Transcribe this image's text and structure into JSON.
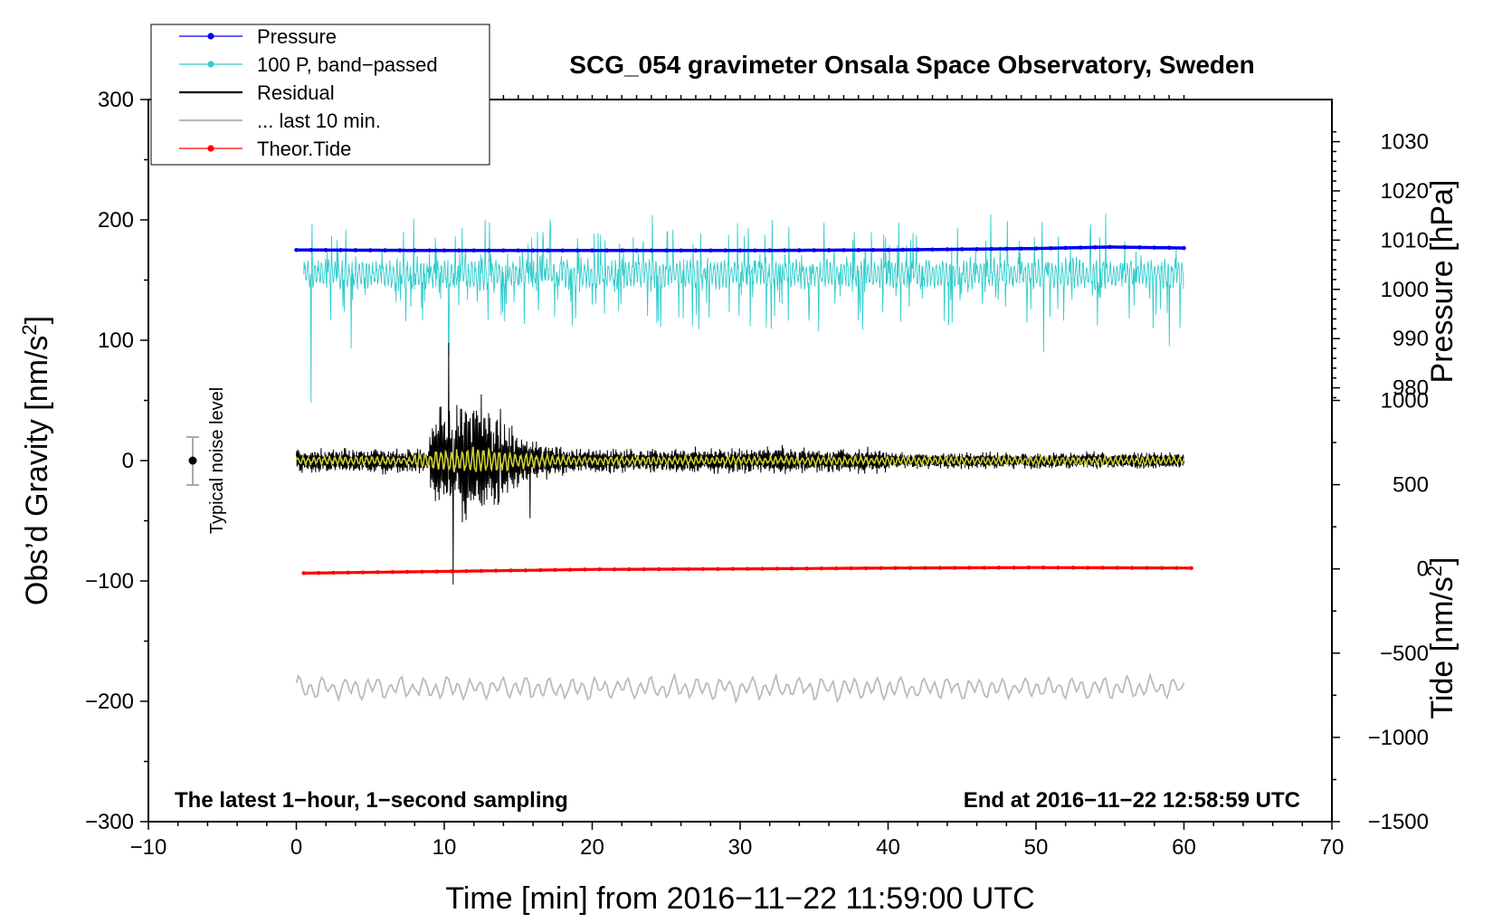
{
  "chart_data": {
    "type": "line",
    "title": "SCG_054 gravimeter Onsala Space Observatory, Sweden",
    "xlabel": "Time [min] from 2016−11−22 11:59:00 UTC",
    "ylabel": "Obs’d Gravity [nm/s²]",
    "ylabel_main": "Obs’d Gravity [nm/s",
    "ylabel_sup": "2",
    "ylabel_end": "]",
    "y2label": "Pressure [hPa]",
    "y3label_main": "Tide [nm/s",
    "y3label_sup": "2",
    "y3label_end": "]",
    "xlim": [
      -10,
      70
    ],
    "ylim": [
      -300,
      300
    ],
    "xticks": [
      -10,
      0,
      10,
      20,
      30,
      40,
      50,
      60,
      70
    ],
    "xtick_labels": [
      "−10",
      "0",
      "10",
      "20",
      "30",
      "40",
      "50",
      "60",
      "70"
    ],
    "yticks": [
      -300,
      -200,
      -100,
      0,
      100,
      200,
      300
    ],
    "ytick_labels": [
      "−300",
      "−200",
      "−100",
      "0",
      "100",
      "200",
      "300"
    ],
    "pressure_axis": {
      "ticks": [
        980,
        990,
        1000,
        1010,
        1020,
        1030
      ],
      "tick_labels": [
        "980",
        "990",
        "1000",
        "1010",
        "1020",
        "1030"
      ],
      "mapping": {
        "hPa": [
          1008,
          1030
        ],
        "gravity": [
          175,
          265
        ]
      }
    },
    "tide_axis": {
      "ticks": [
        -1500,
        -1000,
        -500,
        0,
        500,
        1000
      ],
      "tick_labels": [
        "−1500",
        "−1000",
        "−500",
        "0",
        "500",
        "1000"
      ],
      "mapping": {
        "tide": [
          -1500,
          1000
        ],
        "gravity": [
          -300,
          50
        ]
      }
    },
    "legend": [
      {
        "label": "Pressure",
        "color": "#0000ee",
        "style": "line-dot"
      },
      {
        "label": "100 P, band−passed",
        "color": "#33cccc",
        "style": "line-dot"
      },
      {
        "label": "Residual",
        "color": "#000000",
        "style": "line"
      },
      {
        "label": "... last 10 min.",
        "color": "#bbbbbb",
        "style": "line"
      },
      {
        "label": "Theor.Tide",
        "color": "#ff0000",
        "style": "line-dot"
      }
    ],
    "series": [
      {
        "name": "Pressure",
        "color": "#0000ee",
        "unit": "hPa",
        "x": [
          0,
          10,
          20,
          30,
          40,
          50,
          55,
          60
        ],
        "y": [
          1008.0,
          1007.9,
          1007.9,
          1007.9,
          1008.0,
          1008.3,
          1008.6,
          1008.4
        ]
      },
      {
        "name": "100 P, band−passed",
        "color": "#33cccc",
        "unit": "nm/s² (gravity axis)",
        "x_range": [
          0.5,
          60
        ],
        "baseline": 155,
        "peaks": [
          [
            1.0,
            200
          ],
          [
            1.0,
            48
          ],
          [
            3.7,
            93
          ],
          [
            10.3,
            87
          ],
          [
            50.5,
            90
          ],
          [
            54.7,
            205
          ],
          [
            59.0,
            95
          ]
        ]
      },
      {
        "name": "Residual",
        "color": "#000000",
        "unit": "nm/s²",
        "x_range": [
          0,
          60
        ],
        "baseline": 0,
        "peaks": [
          [
            10.3,
            98
          ],
          [
            10.6,
            -103
          ],
          [
            12.5,
            55
          ],
          [
            13.8,
            43
          ],
          [
            15.8,
            -48
          ]
        ]
      },
      {
        "name": "... last 10 min.",
        "color": "#bbbbbb",
        "unit": "nm/s² (gravity axis)",
        "x_range": [
          0,
          60
        ],
        "baseline": -189
      },
      {
        "name": "Theor.Tide",
        "color": "#ff0000",
        "unit": "nm/s² (tide axis)",
        "x": [
          0.5,
          10,
          20,
          30,
          40,
          50,
          60.5
        ],
        "y": [
          -25,
          -15,
          -3,
          0,
          5,
          8,
          5
        ]
      },
      {
        "name": "Band−passed residual",
        "color": "#cccc33",
        "unit": "nm/s²",
        "x_range": [
          0,
          60
        ],
        "baseline": 0,
        "peaks": [
          [
            10.3,
            12
          ],
          [
            16,
            8
          ]
        ]
      }
    ],
    "noise_level": {
      "label": "Typical noise level",
      "x": -7,
      "center": 0,
      "range": [
        -20,
        20
      ]
    },
    "annotations": {
      "bottom_left": "The latest 1−hour, 1−second sampling",
      "bottom_right": "End at 2016−11−22 12:58:59 UTC"
    }
  }
}
